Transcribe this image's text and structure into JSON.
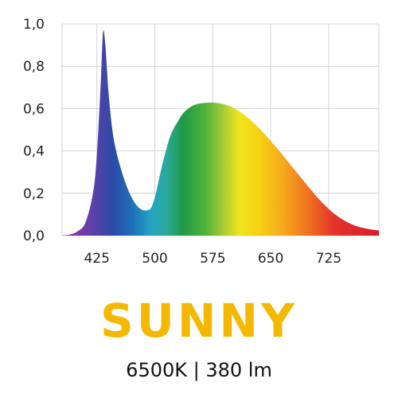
{
  "chart_data": {
    "type": "area",
    "x": [
      380,
      390,
      400,
      410,
      420,
      425,
      430,
      433,
      436,
      440,
      445,
      450,
      455,
      460,
      465,
      470,
      475,
      480,
      485,
      490,
      495,
      500,
      505,
      510,
      515,
      520,
      525,
      530,
      535,
      540,
      545,
      550,
      555,
      560,
      565,
      570,
      575,
      580,
      585,
      590,
      595,
      600,
      610,
      620,
      630,
      640,
      650,
      660,
      670,
      680,
      690,
      700,
      710,
      720,
      730,
      740,
      750,
      760,
      770,
      780,
      790
    ],
    "values": [
      0.0,
      0.005,
      0.02,
      0.06,
      0.2,
      0.38,
      0.72,
      0.96,
      0.9,
      0.68,
      0.5,
      0.4,
      0.33,
      0.27,
      0.22,
      0.18,
      0.15,
      0.13,
      0.12,
      0.12,
      0.13,
      0.18,
      0.26,
      0.34,
      0.41,
      0.47,
      0.51,
      0.54,
      0.57,
      0.59,
      0.605,
      0.615,
      0.622,
      0.625,
      0.627,
      0.628,
      0.628,
      0.627,
      0.624,
      0.62,
      0.614,
      0.606,
      0.585,
      0.558,
      0.525,
      0.488,
      0.447,
      0.405,
      0.36,
      0.315,
      0.27,
      0.225,
      0.182,
      0.144,
      0.11,
      0.083,
      0.062,
      0.046,
      0.036,
      0.029,
      0.024
    ],
    "xlim": [
      380,
      790
    ],
    "ylim": [
      0,
      1.0
    ],
    "x_ticks": [
      {
        "value": 425,
        "label": "425"
      },
      {
        "value": 500,
        "label": "500"
      },
      {
        "value": 575,
        "label": "575"
      },
      {
        "value": 650,
        "label": "650"
      },
      {
        "value": 725,
        "label": "725"
      }
    ],
    "y_ticks": [
      {
        "value": 0.0,
        "label": "0,0"
      },
      {
        "value": 0.2,
        "label": "0,2"
      },
      {
        "value": 0.4,
        "label": "0,4"
      },
      {
        "value": 0.6,
        "label": "0,6"
      },
      {
        "value": 0.8,
        "label": "0,8"
      },
      {
        "value": 1.0,
        "label": "1,0"
      }
    ],
    "grid": true,
    "fill": "visible-spectrum-gradient",
    "title": "",
    "xlabel": "",
    "ylabel": ""
  },
  "product": {
    "name": "SUNNY",
    "specs": "6500K | 380 lm"
  },
  "colors": {
    "brand_yellow": "#f5b800",
    "grid": "#d4d4d4",
    "text": "#222222"
  }
}
